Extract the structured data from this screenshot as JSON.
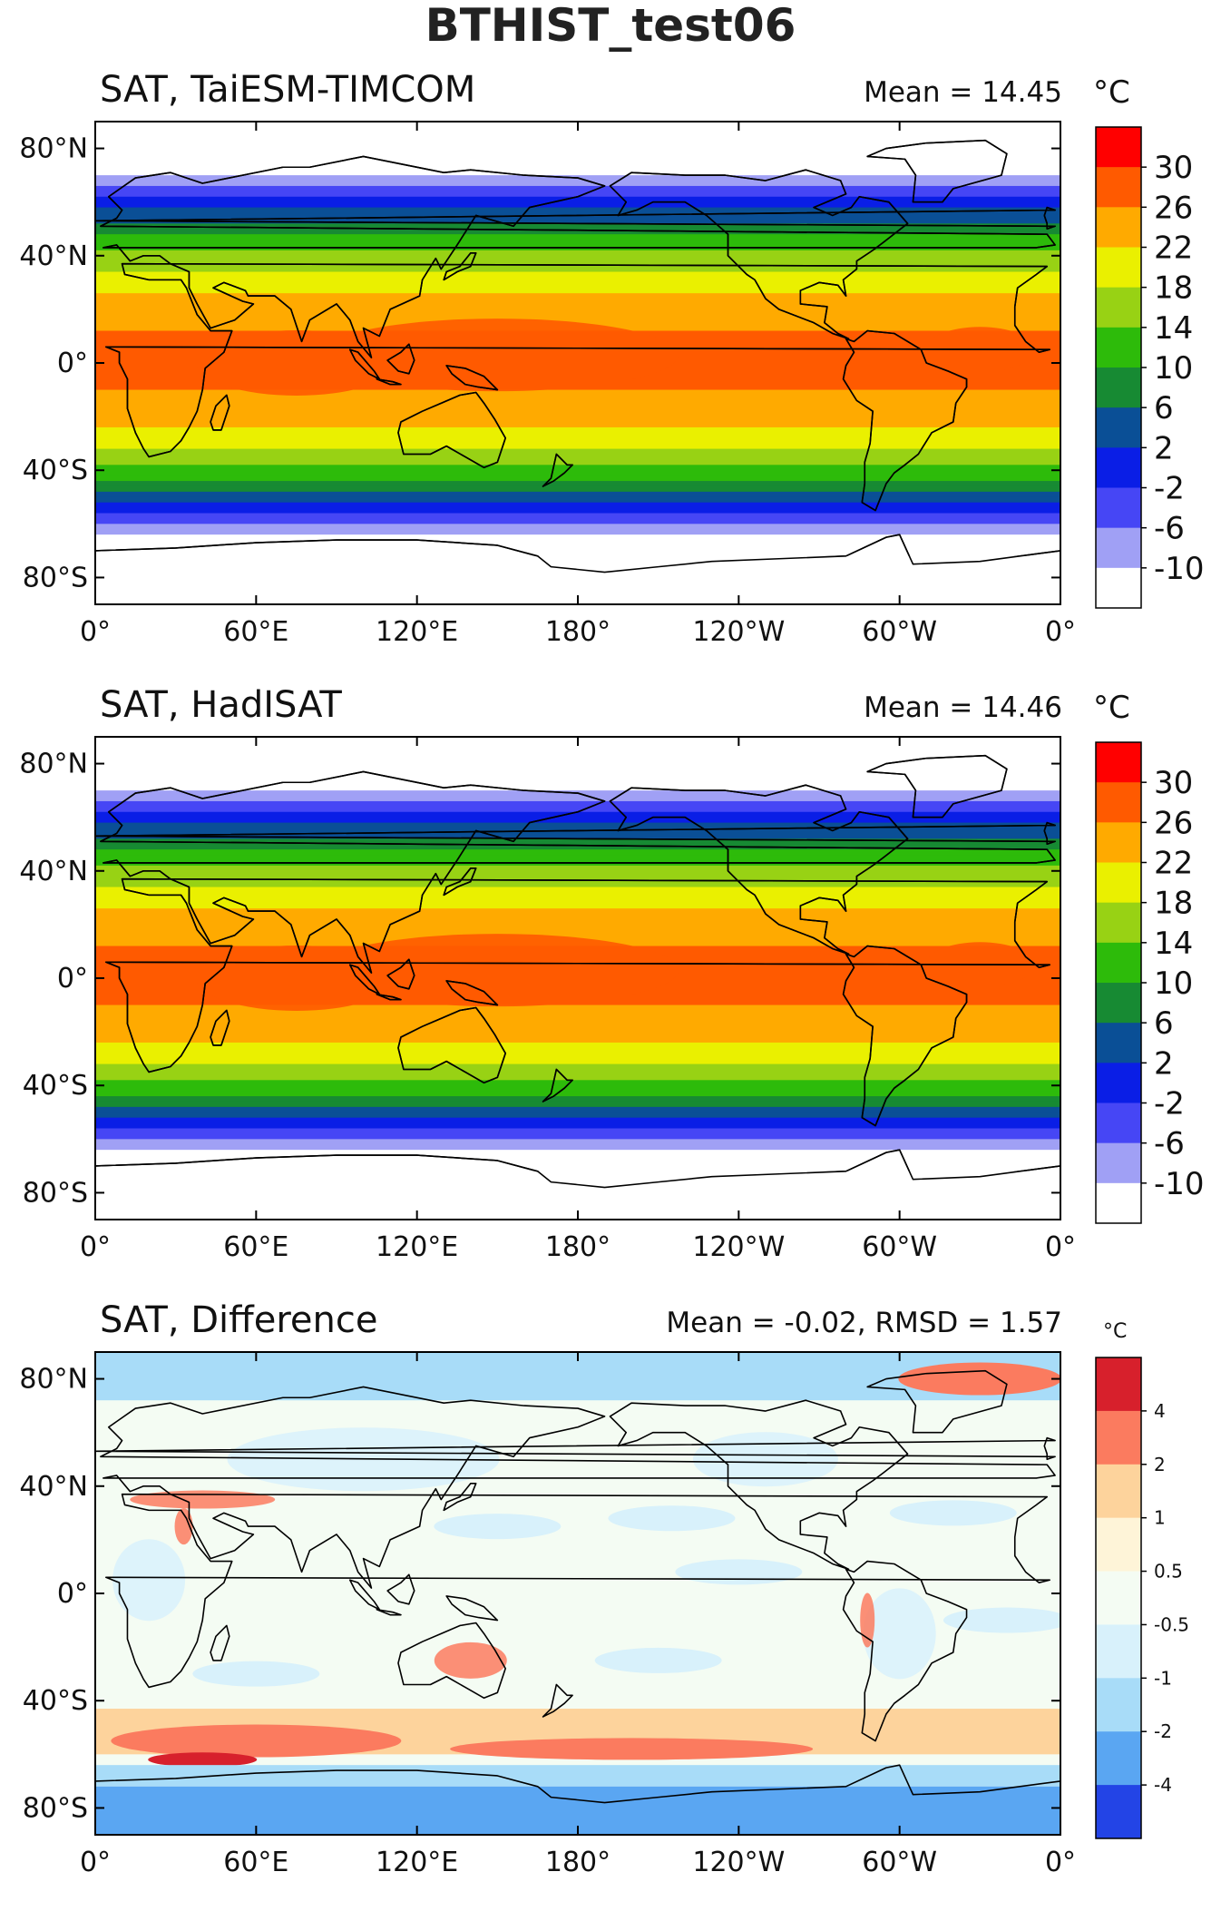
{
  "figure": {
    "title": "BTHIST_test06"
  },
  "chart_data": [
    {
      "type": "heatmap",
      "title": "SAT, TaiESM-TIMCOM",
      "stat_text": "Mean = 14.45",
      "unit": "°C",
      "mean": 14.45,
      "xticks": [
        "0°",
        "60°E",
        "120°E",
        "180°",
        "120°W",
        "60°W",
        "0°"
      ],
      "yticks": [
        "80°N",
        "40°N",
        "0°",
        "40°S",
        "80°S"
      ],
      "colorbar": {
        "labels": [
          "30",
          "26",
          "22",
          "18",
          "14",
          "10",
          "6",
          "2",
          "-2",
          "-6",
          "-10"
        ],
        "colors": [
          "#ff0000",
          "#ff5a00",
          "#ffaa00",
          "#eaf000",
          "#98d214",
          "#2dbb0a",
          "#178a33",
          "#0a4f96",
          "#0a1ee6",
          "#4646f5",
          "#a0a0f5",
          "#ffffff"
        ]
      }
    },
    {
      "type": "heatmap",
      "title": "SAT, HadISAT",
      "stat_text": "Mean = 14.46",
      "unit": "°C",
      "mean": 14.46,
      "xticks": [
        "0°",
        "60°E",
        "120°E",
        "180°",
        "120°W",
        "60°W",
        "0°"
      ],
      "yticks": [
        "80°N",
        "40°N",
        "0°",
        "40°S",
        "80°S"
      ],
      "colorbar": {
        "labels": [
          "30",
          "26",
          "22",
          "18",
          "14",
          "10",
          "6",
          "2",
          "-2",
          "-6",
          "-10"
        ],
        "colors": [
          "#ff0000",
          "#ff5a00",
          "#ffaa00",
          "#eaf000",
          "#98d214",
          "#2dbb0a",
          "#178a33",
          "#0a4f96",
          "#0a1ee6",
          "#4646f5",
          "#a0a0f5",
          "#ffffff"
        ]
      }
    },
    {
      "type": "heatmap",
      "title": "SAT, Difference",
      "stat_text": "Mean = -0.02, RMSD = 1.57",
      "unit": "°C",
      "mean": -0.02,
      "rmsd": 1.57,
      "xticks": [
        "0°",
        "60°E",
        "120°E",
        "180°",
        "120°W",
        "60°W",
        "0°"
      ],
      "yticks": [
        "80°N",
        "40°N",
        "0°",
        "40°S",
        "80°S"
      ],
      "colorbar": {
        "labels": [
          "4",
          "2",
          "1",
          "0.5",
          "-0.5",
          "-1",
          "-2",
          "-4"
        ],
        "colors": [
          "#d7202c",
          "#fb7b5f",
          "#fdd39c",
          "#fef4d8",
          "#f4fcf3",
          "#d8f1fb",
          "#a8dcf8",
          "#5aa6f2",
          "#2344e6"
        ]
      }
    }
  ]
}
